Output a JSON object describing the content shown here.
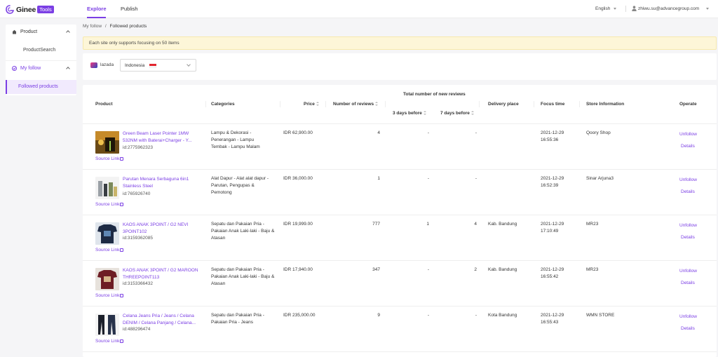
{
  "brand": {
    "name": "Ginee",
    "tag": "Tools",
    "accent": "#7b3fe4"
  },
  "nav": {
    "tabs": [
      {
        "label": "Explore",
        "active": true
      },
      {
        "label": "Publish",
        "active": false
      }
    ]
  },
  "header": {
    "language": "English",
    "user_email": "zhiwu.su@advancegroup.com"
  },
  "sidebar": {
    "groups": [
      {
        "label": "Product",
        "icon": "product-icon",
        "items": [
          "ProductSearch"
        ]
      },
      {
        "label": "My follow",
        "icon": "follow-icon",
        "items": [
          "Followed products"
        ]
      }
    ],
    "active_item": "Followed products"
  },
  "breadcrumb": {
    "parent": "My follow",
    "separator": "/",
    "current": "Followed products"
  },
  "notice": "Each site only supports focusing on 50 items",
  "filter": {
    "site": "lazada",
    "country": "Indonesia"
  },
  "table": {
    "columns": {
      "product": "Product",
      "categories": "Categories",
      "price": "Price",
      "reviews": "Number of reviews",
      "new_reviews_group": "Total number of new reviews",
      "days3": "3 days before",
      "days7": "7 days before",
      "delivery": "Delivery place",
      "focus": "Focus time",
      "store": "Store Information",
      "operate": "Operate"
    },
    "source_label": "Source Link",
    "unfollow_label": "Unfollow",
    "details_label": "Details",
    "rows": [
      {
        "name": "Green Beam Laser Pointer 1MW 532NM with Baterai+Charger - Y...",
        "id": "id:2775962323",
        "category": "Lampu & Dekorasi - Penerangan - Lampu Tembak - Lampu Malam",
        "price": "IDR 62,900.00",
        "reviews": "4",
        "d3": "-",
        "d7": "-",
        "delivery": "",
        "focus_date": "2021-12-29",
        "focus_time": "16:55:36",
        "store": "Qoory Shop"
      },
      {
        "name": "Parutan Menara Serbaguna 6in1 Stainless Steel",
        "id": "id:765926740",
        "category": "Alat Dapur - Alat alat dapur - Parutan, Pengupas & Pemotong",
        "price": "IDR 36,000.00",
        "reviews": "1",
        "d3": "-",
        "d7": "-",
        "delivery": "",
        "focus_date": "2021-12-29",
        "focus_time": "16:52:39",
        "store": "Sinar Arjuna3"
      },
      {
        "name": "KAOS ANAK 3POINT / G2 NEVI 3POINT102",
        "id": "id:3159362085",
        "category": "Sepatu dan Pakaian Pria - Pakaian Anak Laki-laki - Baju & Atasan",
        "price": "IDR 19,999.00",
        "reviews": "777",
        "d3": "1",
        "d7": "4",
        "delivery": "Kab. Bandung",
        "focus_date": "2021-12-29",
        "focus_time": "17:10:49",
        "store": "MR23"
      },
      {
        "name": "KAOS ANAK 3POINT / G2 MAROON THREEPOINT113",
        "id": "id:3153366432",
        "category": "Sepatu dan Pakaian Pria - Pakaian Anak Laki-laki - Baju & Atasan",
        "price": "IDR 17,940.00",
        "reviews": "347",
        "d3": "-",
        "d7": "2",
        "delivery": "Kab. Bandung",
        "focus_date": "2021-12-29",
        "focus_time": "16:55:42",
        "store": "MR23"
      },
      {
        "name": "Celana Jeans Pria / Jeans / Celana DENIM / Celana Panjang / Celana...",
        "id": "id:488296474",
        "category": "Sepatu dan Pakaian Pria - Pakaian Pria - Jeans",
        "price": "IDR 235,000.00",
        "reviews": "9",
        "d3": "-",
        "d7": "-",
        "delivery": "Kota Bandung",
        "focus_date": "2021-12-29",
        "focus_time": "16:55:43",
        "store": "WMN STORE"
      }
    ]
  }
}
